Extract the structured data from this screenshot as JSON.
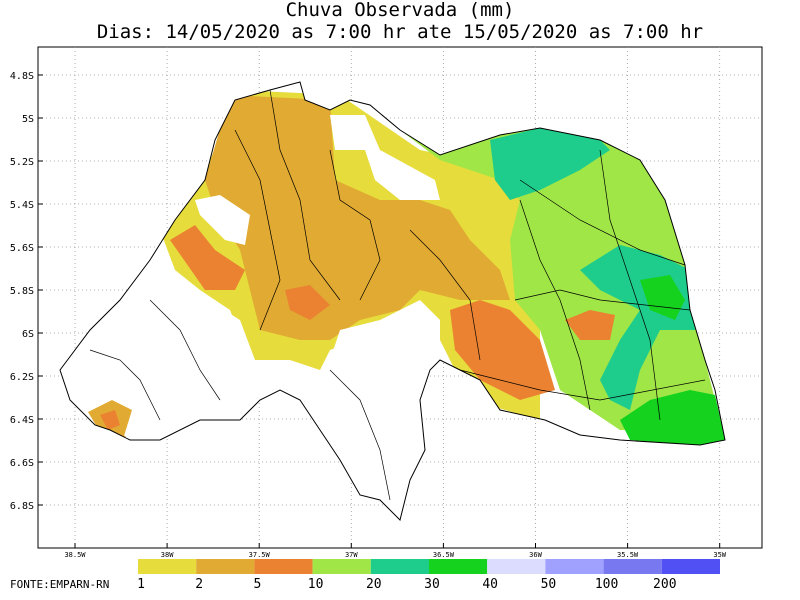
{
  "title": "Chuva Observada (mm)",
  "subtitle": "Dias: 14/05/2020 as 7:00 hr ate 15/05/2020 as 7:00 hr",
  "lat_labels": [
    "4.8S",
    "5S",
    "5.2S",
    "5.4S",
    "5.6S",
    "5.8S",
    "6S",
    "6.2S",
    "6.4S",
    "6.6S",
    "6.8S"
  ],
  "lon_labels": [
    "38.5W",
    "38W",
    "37.5W",
    "37W",
    "36.5W",
    "36W",
    "35.5W",
    "35W"
  ],
  "legend": {
    "labels": [
      "1",
      "2",
      "5",
      "10",
      "20",
      "30",
      "40",
      "50",
      "100",
      "200"
    ],
    "colors": [
      "#e6dc3c",
      "#e1aa32",
      "#eb8232",
      "#a0e646",
      "#1ecd8c",
      "#14d21e",
      "#dcdcff",
      "#a0a0ff",
      "#7878f0",
      "#5050f5"
    ]
  },
  "source": "FONTE:EMPARN-RN"
}
